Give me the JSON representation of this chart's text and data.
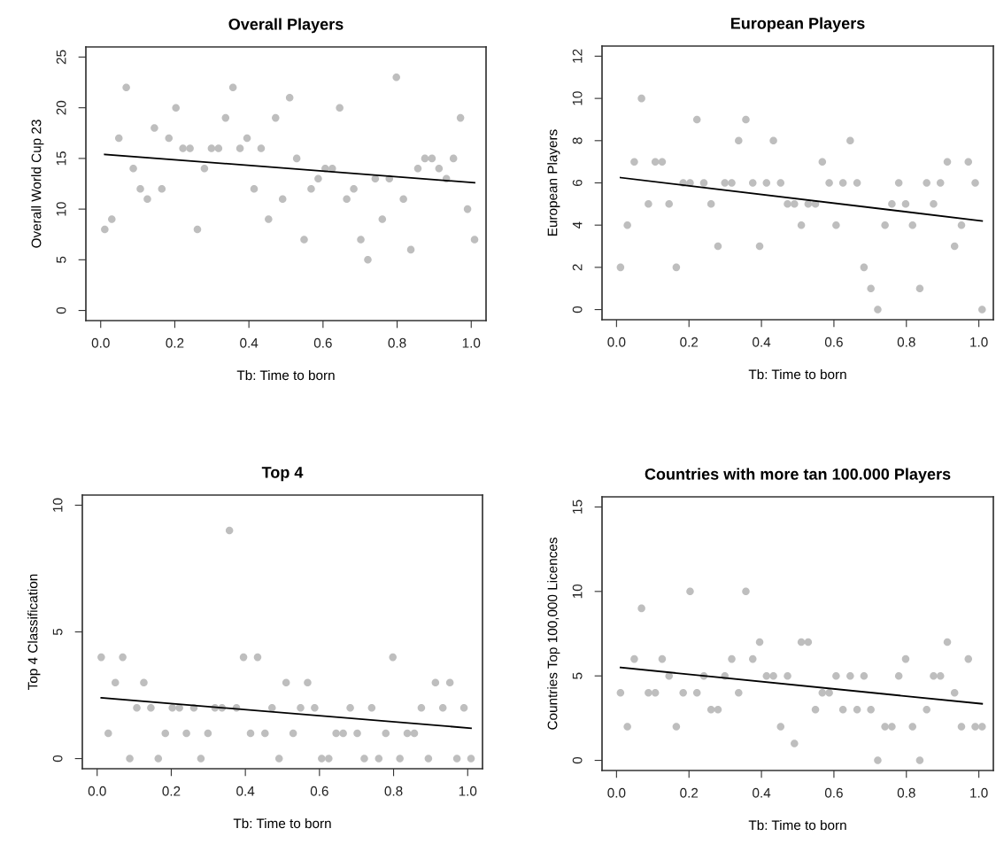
{
  "chart_data": [
    {
      "type": "scatter",
      "title": "Overall Players",
      "xlabel": "Tb: Time to born",
      "ylabel": "Overall World Cup 23",
      "xlim": [
        -0.04,
        1.04
      ],
      "ylim": [
        -1,
        26
      ],
      "xticks": [
        {
          "value": 0,
          "label": "0.0"
        },
        {
          "value": 0.2,
          "label": "0.2"
        },
        {
          "value": 0.4,
          "label": "0.4"
        },
        {
          "value": 0.6,
          "label": "0.6"
        },
        {
          "value": 0.8,
          "label": "0.8"
        },
        {
          "value": 1,
          "label": "1.0"
        }
      ],
      "yticks": [
        0,
        5,
        10,
        15,
        20,
        25
      ],
      "marker": "circle",
      "grid": false,
      "series": [
        {
          "color": "#bebebe",
          "x": [
            0.011,
            0.03,
            0.049,
            0.069,
            0.088,
            0.107,
            0.126,
            0.145,
            0.165,
            0.184,
            0.203,
            0.222,
            0.241,
            0.261,
            0.28,
            0.299,
            0.318,
            0.337,
            0.357,
            0.376,
            0.395,
            0.414,
            0.433,
            0.453,
            0.472,
            0.491,
            0.51,
            0.529,
            0.549,
            0.568,
            0.587,
            0.606,
            0.625,
            0.645,
            0.664,
            0.683,
            0.702,
            0.721,
            0.741,
            0.76,
            0.779,
            0.798,
            0.817,
            0.837,
            0.856,
            0.875,
            0.894,
            0.913,
            0.933,
            0.952,
            0.971,
            0.99,
            1.009
          ],
          "values": [
            8,
            9,
            17,
            22,
            14,
            12,
            11,
            18,
            12,
            17,
            20,
            16,
            16,
            8,
            14,
            16,
            16,
            19,
            22,
            16,
            17,
            12,
            16,
            9,
            19,
            11,
            21,
            15,
            7,
            12,
            13,
            14,
            14,
            20,
            11,
            12,
            7,
            5,
            13,
            9,
            13,
            23,
            11,
            6,
            14,
            15,
            15,
            14,
            13,
            15,
            19,
            10,
            7
          ]
        },
        {
          "type": "line",
          "color": "#000000",
          "x": [
            0.011,
            1.009
          ],
          "values": [
            15.4,
            12.6
          ],
          "marker": "none"
        }
      ]
    },
    {
      "type": "scatter",
      "title": "European Players",
      "xlabel": "Tb: Time to born",
      "ylabel": "European Players",
      "xlim": [
        -0.04,
        1.04
      ],
      "ylim": [
        -0.48,
        12.48
      ],
      "xticks": [
        {
          "value": 0,
          "label": "0.0"
        },
        {
          "value": 0.2,
          "label": "0.2"
        },
        {
          "value": 0.4,
          "label": "0.4"
        },
        {
          "value": 0.6,
          "label": "0.6"
        },
        {
          "value": 0.8,
          "label": "0.8"
        },
        {
          "value": 1,
          "label": "1.0"
        }
      ],
      "yticks": [
        0,
        2,
        4,
        6,
        8,
        10,
        12
      ],
      "marker": "circle",
      "grid": false,
      "series": [
        {
          "color": "#bebebe",
          "x": [
            0.011,
            0.03,
            0.049,
            0.069,
            0.088,
            0.107,
            0.126,
            0.145,
            0.165,
            0.184,
            0.203,
            0.222,
            0.241,
            0.261,
            0.28,
            0.299,
            0.318,
            0.337,
            0.357,
            0.376,
            0.395,
            0.414,
            0.433,
            0.453,
            0.472,
            0.491,
            0.51,
            0.529,
            0.549,
            0.568,
            0.587,
            0.606,
            0.625,
            0.645,
            0.664,
            0.683,
            0.702,
            0.721,
            0.741,
            0.76,
            0.779,
            0.798,
            0.817,
            0.837,
            0.856,
            0.875,
            0.894,
            0.913,
            0.933,
            0.952,
            0.971,
            0.99,
            1.009
          ],
          "values": [
            2,
            4,
            7,
            10,
            5,
            7,
            7,
            5,
            2,
            6,
            6,
            9,
            6,
            5,
            3,
            6,
            6,
            8,
            9,
            6,
            3,
            6,
            8,
            6,
            5,
            5,
            4,
            5,
            5,
            7,
            6,
            4,
            6,
            8,
            6,
            2,
            1,
            0,
            4,
            5,
            6,
            5,
            4,
            1,
            6,
            5,
            6,
            7,
            3,
            4,
            7,
            6,
            0
          ]
        },
        {
          "type": "line",
          "color": "#000000",
          "x": [
            0.011,
            1.009
          ],
          "values": [
            6.25,
            4.2
          ],
          "marker": "none"
        }
      ]
    },
    {
      "type": "scatter",
      "title": "Top 4",
      "xlabel": "Tb: Time to born",
      "ylabel": "Top 4 Classification",
      "xlim": [
        -0.04,
        1.04
      ],
      "ylim": [
        -0.4,
        10.4
      ],
      "xticks": [
        {
          "value": 0,
          "label": "0.0"
        },
        {
          "value": 0.2,
          "label": "0.2"
        },
        {
          "value": 0.4,
          "label": "0.4"
        },
        {
          "value": 0.6,
          "label": "0.6"
        },
        {
          "value": 0.8,
          "label": "0.8"
        },
        {
          "value": 1,
          "label": "1.0"
        }
      ],
      "yticks": [
        0,
        5,
        10
      ],
      "marker": "circle",
      "grid": false,
      "series": [
        {
          "color": "#bebebe",
          "x": [
            0.011,
            0.03,
            0.049,
            0.069,
            0.088,
            0.107,
            0.126,
            0.145,
            0.165,
            0.184,
            0.203,
            0.222,
            0.241,
            0.261,
            0.28,
            0.299,
            0.318,
            0.337,
            0.357,
            0.376,
            0.395,
            0.414,
            0.433,
            0.453,
            0.472,
            0.491,
            0.51,
            0.529,
            0.549,
            0.568,
            0.587,
            0.606,
            0.625,
            0.645,
            0.664,
            0.683,
            0.702,
            0.721,
            0.741,
            0.76,
            0.779,
            0.798,
            0.817,
            0.837,
            0.856,
            0.875,
            0.894,
            0.913,
            0.933,
            0.952,
            0.971,
            0.99,
            1.009
          ],
          "values": [
            4,
            1,
            3,
            4,
            0,
            2,
            3,
            2,
            0,
            1,
            2,
            2,
            1,
            2,
            0,
            1,
            2,
            2,
            9,
            2,
            4,
            1,
            4,
            1,
            2,
            0,
            3,
            1,
            2,
            3,
            2,
            0,
            0,
            1,
            1,
            2,
            1,
            0,
            2,
            0,
            1,
            4,
            0,
            1,
            1,
            2,
            0,
            3,
            2,
            3,
            0,
            2,
            0
          ]
        },
        {
          "type": "line",
          "color": "#000000",
          "x": [
            0.011,
            1.009
          ],
          "values": [
            2.4,
            1.2
          ],
          "marker": "none"
        }
      ]
    },
    {
      "type": "scatter",
      "title": "Countries with more tan 100.000 Players",
      "xlabel": "Tb: Time to born",
      "ylabel": "Countries Top 100,000 Licences",
      "xlim": [
        -0.04,
        1.04
      ],
      "ylim": [
        -0.6,
        15.6
      ],
      "xticks": [
        {
          "value": 0,
          "label": "0.0"
        },
        {
          "value": 0.2,
          "label": "0.2"
        },
        {
          "value": 0.4,
          "label": "0.4"
        },
        {
          "value": 0.6,
          "label": "0.6"
        },
        {
          "value": 0.8,
          "label": "0.8"
        },
        {
          "value": 1,
          "label": "1.0"
        }
      ],
      "yticks": [
        0,
        5,
        10,
        15
      ],
      "marker": "circle",
      "grid": false,
      "series": [
        {
          "color": "#bebebe",
          "x": [
            0.011,
            0.03,
            0.049,
            0.069,
            0.088,
            0.107,
            0.126,
            0.145,
            0.165,
            0.184,
            0.203,
            0.222,
            0.241,
            0.261,
            0.28,
            0.299,
            0.318,
            0.337,
            0.357,
            0.376,
            0.395,
            0.414,
            0.433,
            0.453,
            0.472,
            0.491,
            0.51,
            0.529,
            0.549,
            0.568,
            0.587,
            0.606,
            0.625,
            0.645,
            0.664,
            0.683,
            0.702,
            0.721,
            0.741,
            0.76,
            0.779,
            0.798,
            0.817,
            0.837,
            0.856,
            0.875,
            0.894,
            0.913,
            0.933,
            0.952,
            0.971,
            0.99,
            1.009
          ],
          "values": [
            4,
            2,
            6,
            9,
            4,
            4,
            6,
            5,
            2,
            4,
            10,
            4,
            5,
            3,
            3,
            5,
            6,
            4,
            10,
            6,
            7,
            5,
            5,
            2,
            5,
            1,
            7,
            7,
            3,
            4,
            4,
            5,
            3,
            5,
            3,
            5,
            3,
            0,
            2,
            2,
            5,
            6,
            2,
            0,
            3,
            5,
            5,
            7,
            4,
            2,
            6,
            2,
            2
          ]
        },
        {
          "type": "line",
          "color": "#000000",
          "x": [
            0.011,
            1.009
          ],
          "values": [
            5.5,
            3.35
          ],
          "marker": "none"
        }
      ]
    }
  ]
}
